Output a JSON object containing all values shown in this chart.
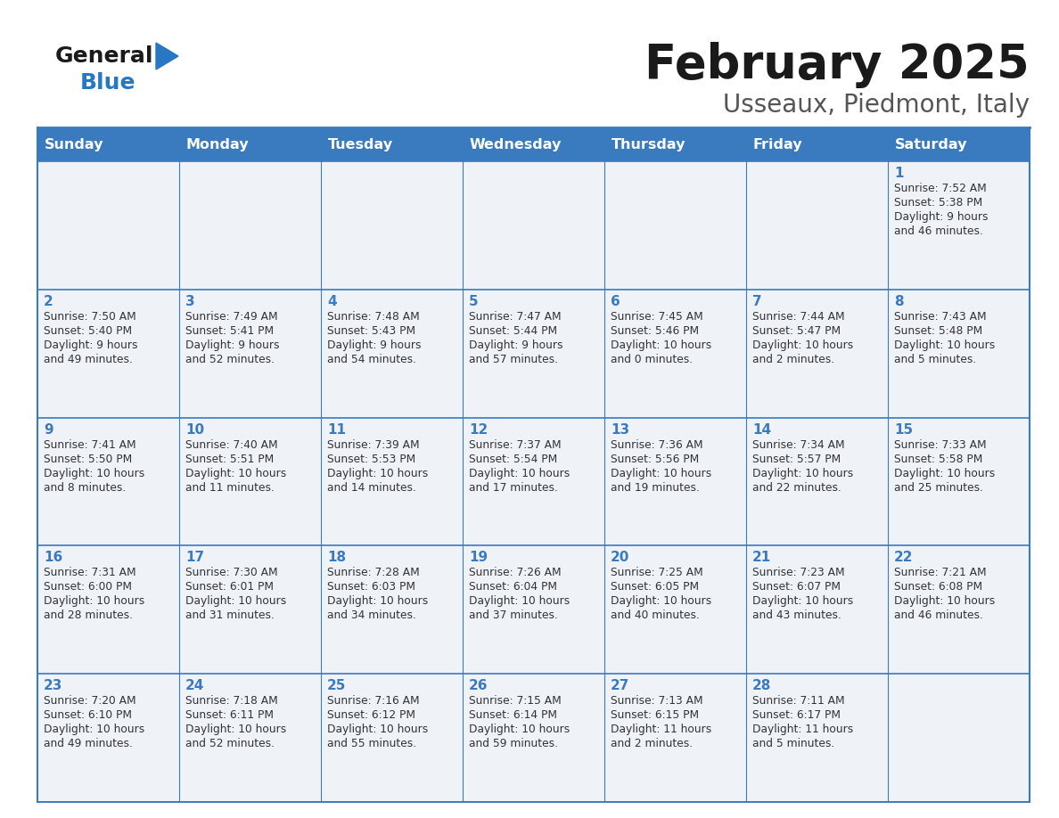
{
  "title": "February 2025",
  "subtitle": "Usseaux, Piedmont, Italy",
  "days_of_week": [
    "Sunday",
    "Monday",
    "Tuesday",
    "Wednesday",
    "Thursday",
    "Friday",
    "Saturday"
  ],
  "header_bg": "#3a7abf",
  "header_text": "#ffffff",
  "cell_bg": "#eff3f8",
  "border_color": "#3a7abf",
  "title_color": "#1a1a1a",
  "subtitle_color": "#555555",
  "day_number_color": "#3a7abf",
  "cell_text_color": "#333333",
  "calendar_data": [
    [
      {
        "day": 0,
        "sunrise": "",
        "sunset": "",
        "daylight": ""
      },
      {
        "day": 0,
        "sunrise": "",
        "sunset": "",
        "daylight": ""
      },
      {
        "day": 0,
        "sunrise": "",
        "sunset": "",
        "daylight": ""
      },
      {
        "day": 0,
        "sunrise": "",
        "sunset": "",
        "daylight": ""
      },
      {
        "day": 0,
        "sunrise": "",
        "sunset": "",
        "daylight": ""
      },
      {
        "day": 0,
        "sunrise": "",
        "sunset": "",
        "daylight": ""
      },
      {
        "day": 1,
        "sunrise": "Sunrise: 7:52 AM",
        "sunset": "Sunset: 5:38 PM",
        "daylight": "Daylight: 9 hours\nand 46 minutes."
      }
    ],
    [
      {
        "day": 2,
        "sunrise": "Sunrise: 7:50 AM",
        "sunset": "Sunset: 5:40 PM",
        "daylight": "Daylight: 9 hours\nand 49 minutes."
      },
      {
        "day": 3,
        "sunrise": "Sunrise: 7:49 AM",
        "sunset": "Sunset: 5:41 PM",
        "daylight": "Daylight: 9 hours\nand 52 minutes."
      },
      {
        "day": 4,
        "sunrise": "Sunrise: 7:48 AM",
        "sunset": "Sunset: 5:43 PM",
        "daylight": "Daylight: 9 hours\nand 54 minutes."
      },
      {
        "day": 5,
        "sunrise": "Sunrise: 7:47 AM",
        "sunset": "Sunset: 5:44 PM",
        "daylight": "Daylight: 9 hours\nand 57 minutes."
      },
      {
        "day": 6,
        "sunrise": "Sunrise: 7:45 AM",
        "sunset": "Sunset: 5:46 PM",
        "daylight": "Daylight: 10 hours\nand 0 minutes."
      },
      {
        "day": 7,
        "sunrise": "Sunrise: 7:44 AM",
        "sunset": "Sunset: 5:47 PM",
        "daylight": "Daylight: 10 hours\nand 2 minutes."
      },
      {
        "day": 8,
        "sunrise": "Sunrise: 7:43 AM",
        "sunset": "Sunset: 5:48 PM",
        "daylight": "Daylight: 10 hours\nand 5 minutes."
      }
    ],
    [
      {
        "day": 9,
        "sunrise": "Sunrise: 7:41 AM",
        "sunset": "Sunset: 5:50 PM",
        "daylight": "Daylight: 10 hours\nand 8 minutes."
      },
      {
        "day": 10,
        "sunrise": "Sunrise: 7:40 AM",
        "sunset": "Sunset: 5:51 PM",
        "daylight": "Daylight: 10 hours\nand 11 minutes."
      },
      {
        "day": 11,
        "sunrise": "Sunrise: 7:39 AM",
        "sunset": "Sunset: 5:53 PM",
        "daylight": "Daylight: 10 hours\nand 14 minutes."
      },
      {
        "day": 12,
        "sunrise": "Sunrise: 7:37 AM",
        "sunset": "Sunset: 5:54 PM",
        "daylight": "Daylight: 10 hours\nand 17 minutes."
      },
      {
        "day": 13,
        "sunrise": "Sunrise: 7:36 AM",
        "sunset": "Sunset: 5:56 PM",
        "daylight": "Daylight: 10 hours\nand 19 minutes."
      },
      {
        "day": 14,
        "sunrise": "Sunrise: 7:34 AM",
        "sunset": "Sunset: 5:57 PM",
        "daylight": "Daylight: 10 hours\nand 22 minutes."
      },
      {
        "day": 15,
        "sunrise": "Sunrise: 7:33 AM",
        "sunset": "Sunset: 5:58 PM",
        "daylight": "Daylight: 10 hours\nand 25 minutes."
      }
    ],
    [
      {
        "day": 16,
        "sunrise": "Sunrise: 7:31 AM",
        "sunset": "Sunset: 6:00 PM",
        "daylight": "Daylight: 10 hours\nand 28 minutes."
      },
      {
        "day": 17,
        "sunrise": "Sunrise: 7:30 AM",
        "sunset": "Sunset: 6:01 PM",
        "daylight": "Daylight: 10 hours\nand 31 minutes."
      },
      {
        "day": 18,
        "sunrise": "Sunrise: 7:28 AM",
        "sunset": "Sunset: 6:03 PM",
        "daylight": "Daylight: 10 hours\nand 34 minutes."
      },
      {
        "day": 19,
        "sunrise": "Sunrise: 7:26 AM",
        "sunset": "Sunset: 6:04 PM",
        "daylight": "Daylight: 10 hours\nand 37 minutes."
      },
      {
        "day": 20,
        "sunrise": "Sunrise: 7:25 AM",
        "sunset": "Sunset: 6:05 PM",
        "daylight": "Daylight: 10 hours\nand 40 minutes."
      },
      {
        "day": 21,
        "sunrise": "Sunrise: 7:23 AM",
        "sunset": "Sunset: 6:07 PM",
        "daylight": "Daylight: 10 hours\nand 43 minutes."
      },
      {
        "day": 22,
        "sunrise": "Sunrise: 7:21 AM",
        "sunset": "Sunset: 6:08 PM",
        "daylight": "Daylight: 10 hours\nand 46 minutes."
      }
    ],
    [
      {
        "day": 23,
        "sunrise": "Sunrise: 7:20 AM",
        "sunset": "Sunset: 6:10 PM",
        "daylight": "Daylight: 10 hours\nand 49 minutes."
      },
      {
        "day": 24,
        "sunrise": "Sunrise: 7:18 AM",
        "sunset": "Sunset: 6:11 PM",
        "daylight": "Daylight: 10 hours\nand 52 minutes."
      },
      {
        "day": 25,
        "sunrise": "Sunrise: 7:16 AM",
        "sunset": "Sunset: 6:12 PM",
        "daylight": "Daylight: 10 hours\nand 55 minutes."
      },
      {
        "day": 26,
        "sunrise": "Sunrise: 7:15 AM",
        "sunset": "Sunset: 6:14 PM",
        "daylight": "Daylight: 10 hours\nand 59 minutes."
      },
      {
        "day": 27,
        "sunrise": "Sunrise: 7:13 AM",
        "sunset": "Sunset: 6:15 PM",
        "daylight": "Daylight: 11 hours\nand 2 minutes."
      },
      {
        "day": 28,
        "sunrise": "Sunrise: 7:11 AM",
        "sunset": "Sunset: 6:17 PM",
        "daylight": "Daylight: 11 hours\nand 5 minutes."
      },
      {
        "day": 0,
        "sunrise": "",
        "sunset": "",
        "daylight": ""
      }
    ]
  ]
}
